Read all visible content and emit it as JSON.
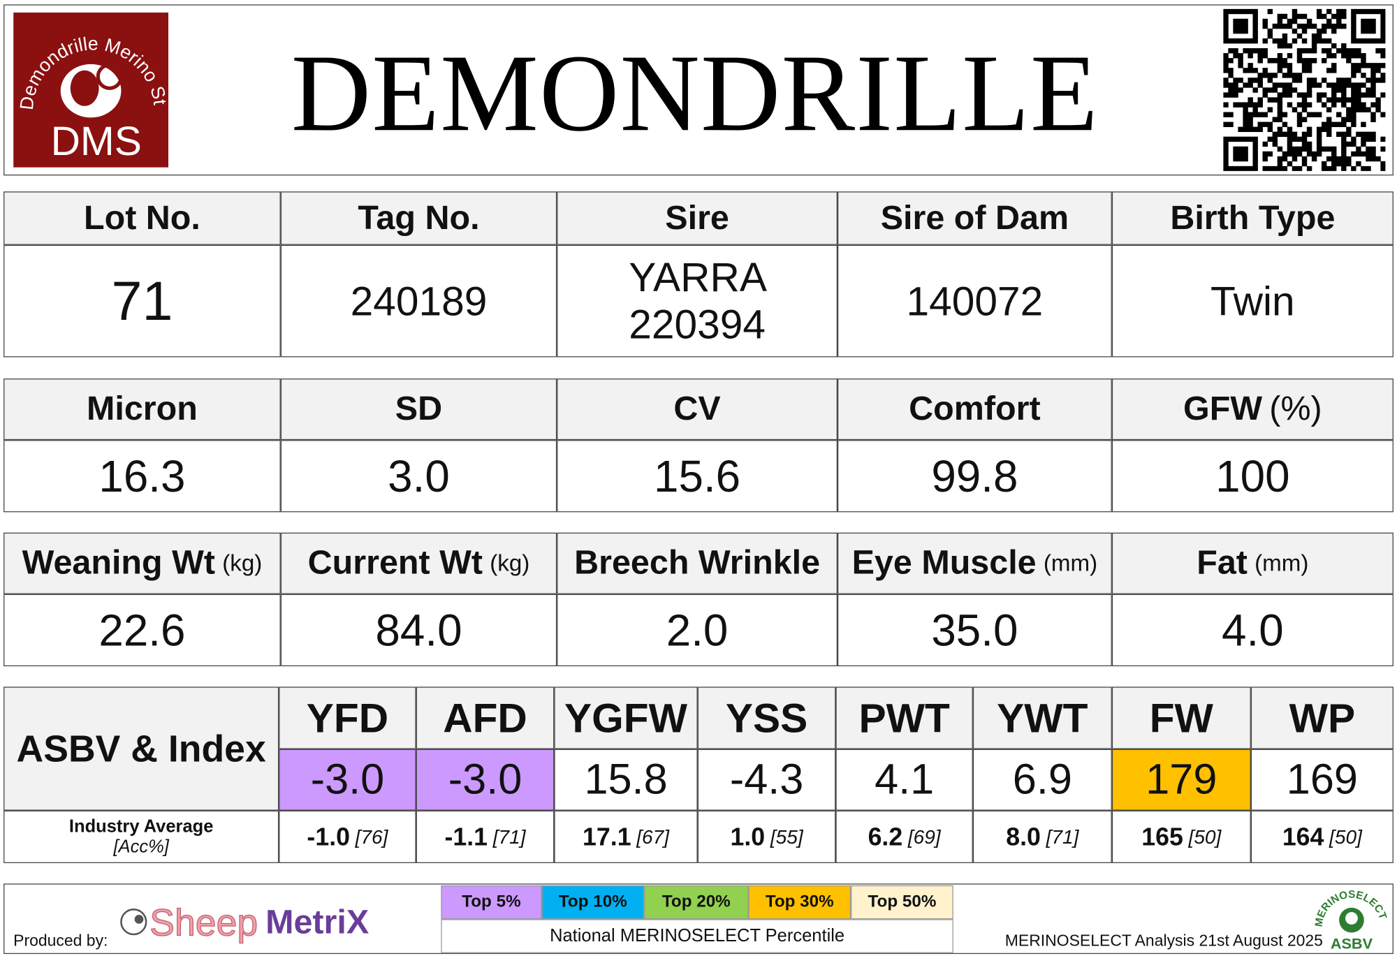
{
  "header": {
    "title": "DEMONDRILLE",
    "logo_text": "Demondrille Merino Stud",
    "logo_abbr": "DMS"
  },
  "details": {
    "headers": [
      "Lot No.",
      "Tag No.",
      "Sire",
      "Sire of Dam",
      "Birth Type"
    ],
    "values": [
      "71",
      "240189",
      "YARRA 220394",
      "140072",
      "Twin"
    ]
  },
  "wool": {
    "headers": [
      {
        "label": "Micron"
      },
      {
        "label": "SD"
      },
      {
        "label": "CV"
      },
      {
        "label": "Comfort"
      },
      {
        "label": "GFW",
        "unit": "(%)"
      }
    ],
    "values": [
      "16.3",
      "3.0",
      "15.6",
      "99.8",
      "100"
    ]
  },
  "body": {
    "headers": [
      {
        "label": "Weaning Wt",
        "unit": "(kg)"
      },
      {
        "label": "Current Wt",
        "unit": "(kg)"
      },
      {
        "label": "Breech Wrinkle"
      },
      {
        "label": "Eye Muscle",
        "unit": "(mm)"
      },
      {
        "label": "Fat",
        "unit": "(mm)"
      }
    ],
    "values": [
      "22.6",
      "84.0",
      "2.0",
      "35.0",
      "4.0"
    ]
  },
  "asbv": {
    "label": "ASBV & Index",
    "industry_label": "Industry Average",
    "accuracy_label": "[Acc%]",
    "traits": [
      {
        "name": "YFD",
        "value": "-3.0",
        "industry_avg": "-1.0",
        "accuracy": "[76]",
        "band": "Top 5%"
      },
      {
        "name": "AFD",
        "value": "-3.0",
        "industry_avg": "-1.1",
        "accuracy": "[71]",
        "band": "Top 5%"
      },
      {
        "name": "YGFW",
        "value": "15.8",
        "industry_avg": "17.1",
        "accuracy": "[67]"
      },
      {
        "name": "YSS",
        "value": "-4.3",
        "industry_avg": "1.0",
        "accuracy": "[55]"
      },
      {
        "name": "PWT",
        "value": "4.1",
        "industry_avg": "6.2",
        "accuracy": "[69]"
      },
      {
        "name": "YWT",
        "value": "6.9",
        "industry_avg": "8.0",
        "accuracy": "[71]"
      },
      {
        "name": "FW",
        "value": "179",
        "industry_avg": "165",
        "accuracy": "[50]",
        "band": "Top 30%"
      },
      {
        "name": "WP",
        "value": "169",
        "industry_avg": "164",
        "accuracy": "[50]"
      }
    ]
  },
  "footer": {
    "produced_by": "Produced by:",
    "brand_prefix": "Sheep",
    "brand_suffix": "MetriX",
    "legend": [
      {
        "name": "Top 5%",
        "color": "#cc99ff"
      },
      {
        "name": "Top 10%",
        "color": "#00b0f0"
      },
      {
        "name": "Top 20%",
        "color": "#92d050"
      },
      {
        "name": "Top 30%",
        "color": "#ffc000"
      },
      {
        "name": "Top 50%",
        "color": "#fff2cc"
      }
    ],
    "legend_caption": "National MERINOSELECT Percentile",
    "analysis": "MERINOSELECT Analysis 21st August 2025",
    "asbv_logo_top": "MERINOSELECT",
    "asbv_logo_bottom": "ASBV"
  }
}
